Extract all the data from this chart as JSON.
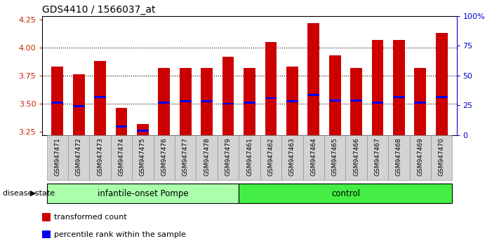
{
  "title": "GDS4410 / 1566037_at",
  "samples": [
    "GSM947471",
    "GSM947472",
    "GSM947473",
    "GSM947474",
    "GSM947475",
    "GSM947476",
    "GSM947477",
    "GSM947478",
    "GSM947479",
    "GSM947461",
    "GSM947462",
    "GSM947463",
    "GSM947464",
    "GSM947465",
    "GSM947466",
    "GSM947467",
    "GSM947468",
    "GSM947469",
    "GSM947470"
  ],
  "transformed_count": [
    3.83,
    3.76,
    3.88,
    3.46,
    3.32,
    3.82,
    3.82,
    3.82,
    3.92,
    3.82,
    4.05,
    3.83,
    4.22,
    3.93,
    3.82,
    4.07,
    4.07,
    3.82,
    4.13
  ],
  "percentile_rank": [
    3.51,
    3.48,
    3.56,
    3.3,
    3.26,
    3.51,
    3.52,
    3.52,
    3.5,
    3.51,
    3.55,
    3.52,
    3.58,
    3.53,
    3.53,
    3.51,
    3.56,
    3.51,
    3.56
  ],
  "ylim_left": [
    3.22,
    4.28
  ],
  "yticks_left": [
    3.25,
    3.5,
    3.75,
    4.0,
    4.25
  ],
  "yticks_right": [
    0,
    25,
    50,
    75,
    100
  ],
  "bar_color": "#CC0000",
  "blue_color": "#0000EE",
  "bar_width": 0.55,
  "background_color": "#ffffff",
  "tick_label_color_left": "#CC2200",
  "tick_label_color_right": "#0000CC",
  "title_fontsize": 10,
  "group_infantile_color": "#AAFFAA",
  "group_control_color": "#44EE44",
  "group_border_color": "#000000",
  "tick_bg_color": "#D3D3D3",
  "disease_state_label": "disease state",
  "legend_items": [
    {
      "label": "transformed count",
      "color": "#CC0000"
    },
    {
      "label": "percentile rank within the sample",
      "color": "#0000EE"
    }
  ],
  "grid_yticks": [
    3.5,
    3.75,
    4.0
  ],
  "infantile_count": 9,
  "control_count": 10
}
